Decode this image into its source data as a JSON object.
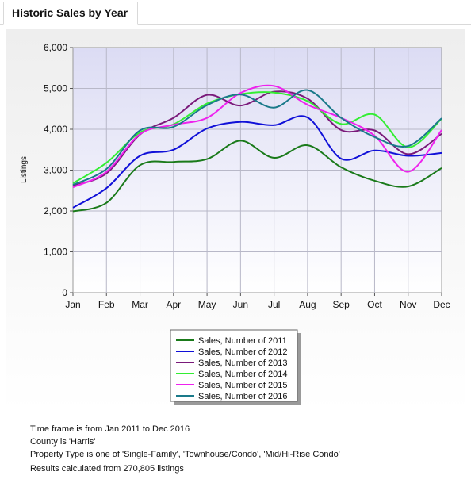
{
  "tab": {
    "label": "Historic Sales by Year"
  },
  "chart_data": {
    "type": "line",
    "title": "",
    "xlabel": "",
    "ylabel": "Listings",
    "ylim": [
      0,
      6000
    ],
    "yticks": [
      "0",
      "1,000",
      "2,000",
      "3,000",
      "4,000",
      "5,000",
      "6,000"
    ],
    "yticks_values": [
      0,
      1000,
      2000,
      3000,
      4000,
      5000,
      6000
    ],
    "categories": [
      "Jan",
      "Feb",
      "Mar",
      "Apr",
      "May",
      "Jun",
      "Jul",
      "Aug",
      "Sep",
      "Oct",
      "Nov",
      "Dec"
    ],
    "grid": true,
    "legend_position": "bottom-center",
    "series": [
      {
        "name": "Sales, Number of 2011",
        "color": "#1a7a1a",
        "values": [
          1990,
          2200,
          3120,
          3200,
          3270,
          3720,
          3300,
          3610,
          3070,
          2740,
          2600,
          3050
        ]
      },
      {
        "name": "Sales, Number of 2012",
        "color": "#1010d8",
        "values": [
          2080,
          2560,
          3350,
          3500,
          4020,
          4180,
          4100,
          4290,
          3280,
          3480,
          3350,
          3420
        ]
      },
      {
        "name": "Sales, Number of 2013",
        "color": "#7a1a7a",
        "values": [
          2620,
          2920,
          3870,
          4280,
          4840,
          4580,
          4920,
          4750,
          3980,
          3970,
          3390,
          3890
        ]
      },
      {
        "name": "Sales, Number of 2014",
        "color": "#33ee33",
        "values": [
          2680,
          3180,
          3920,
          4120,
          4630,
          4860,
          4900,
          4690,
          4130,
          4360,
          3560,
          4260
        ]
      },
      {
        "name": "Sales, Number of 2015",
        "color": "#ee22ee",
        "values": [
          2580,
          2960,
          3880,
          4110,
          4280,
          4890,
          5060,
          4600,
          4280,
          3840,
          2960,
          3980
        ]
      },
      {
        "name": "Sales, Number of 2016",
        "color": "#1a7a8a",
        "values": [
          2640,
          3030,
          3970,
          4060,
          4590,
          4850,
          4530,
          4960,
          4280,
          3810,
          3590,
          4270
        ]
      }
    ]
  },
  "footer": {
    "line1": "Time frame is from Jan 2011 to Dec 2016",
    "line2": "County is 'Harris'",
    "line3": "Property Type is one of 'Single-Family', 'Townhouse/Condo', 'Mid/Hi-Rise Condo'",
    "line4": "Results calculated from 270,805 listings"
  }
}
